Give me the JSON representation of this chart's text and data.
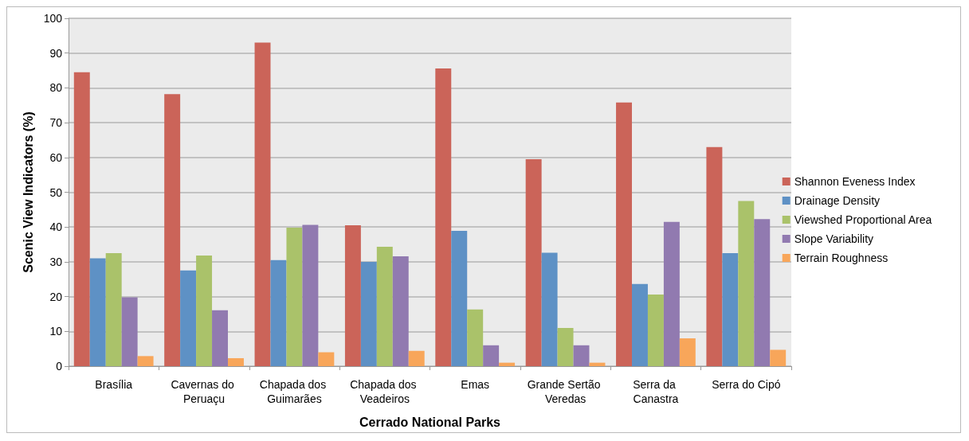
{
  "chart_data": {
    "type": "bar",
    "xlabel": "Cerrado National Parks",
    "ylabel": "Scenic View Indicators (%)",
    "categories": [
      "Brasília",
      "Cavernas do Peruaçu",
      "Chapada dos Guimarães",
      "Chapada dos Veadeiros",
      "Emas",
      "Grande Sertão Veredas",
      "Serra da Canastra",
      "Serra do Cipó"
    ],
    "series": [
      {
        "name": "Shannon Eveness Index",
        "color": "#cb6459",
        "values": [
          84.5,
          78.2,
          93,
          40.5,
          85.6,
          59.5,
          75.8,
          63
        ]
      },
      {
        "name": "Drainage Density",
        "color": "#5e91c5",
        "values": [
          31,
          27.5,
          30.5,
          30,
          38.9,
          32.6,
          23.6,
          32.5
        ]
      },
      {
        "name": "Viewshed Proportional Area",
        "color": "#aac26a",
        "values": [
          32.5,
          31.8,
          39.8,
          34.3,
          16.3,
          11,
          20.6,
          47.5
        ]
      },
      {
        "name": "Slope Variability",
        "color": "#917ab0",
        "values": [
          19.8,
          16.1,
          40.6,
          31.6,
          6,
          6,
          41.5,
          42.3
        ]
      },
      {
        "name": "Terrain Roughness",
        "color": "#f8a65a",
        "values": [
          2.9,
          2.3,
          4,
          4.4,
          1,
          1,
          8,
          4.7
        ]
      }
    ],
    "ylim": [
      0,
      100
    ],
    "yticks": [
      0,
      10,
      20,
      30,
      40,
      50,
      60,
      70,
      80,
      90,
      100
    ],
    "grid": "y",
    "legend": "right"
  }
}
